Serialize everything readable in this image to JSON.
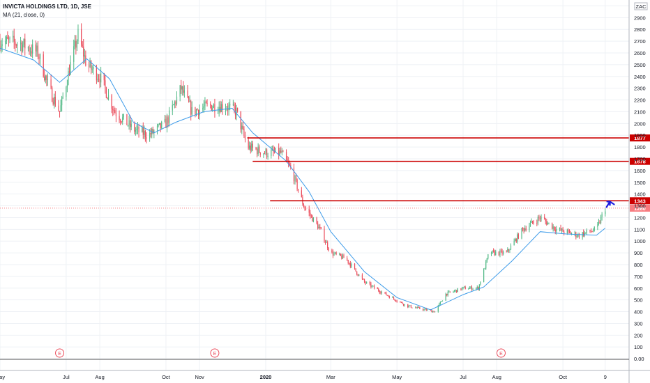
{
  "header": {
    "title": "INVICTA HOLDINGS LTD, 1D, JSE",
    "indicator": "MA (21, close, 0)",
    "currency": "ZAC"
  },
  "colors": {
    "up": "#53b987",
    "down": "#eb4d5c",
    "ma": "#3d9be9",
    "level": "#cc0000",
    "last_price": "#f77c80",
    "grid": "#eef1f5",
    "arrow": "#1a1adf"
  },
  "chart_data": {
    "type": "candlestick",
    "title": "INVICTA HOLDINGS LTD, 1D, JSE",
    "ylim": [
      -100,
      3050
    ],
    "yticks": [
      0,
      100,
      200,
      300,
      400,
      500,
      600,
      700,
      800,
      900,
      1000,
      1100,
      1200,
      1300,
      1400,
      1500,
      1600,
      1700,
      1800,
      1900,
      2000,
      2100,
      2200,
      2300,
      2400,
      2500,
      2600,
      2700,
      2800,
      2900,
      3000
    ],
    "ytick_labels": [
      "0.00",
      "100",
      "200",
      "300",
      "400",
      "500",
      "600",
      "700",
      "800",
      "900",
      "1000",
      "1100",
      "1200",
      "1300",
      "1400",
      "1500",
      "1600",
      "1700",
      "1800",
      "1900",
      "2000",
      "2100",
      "2200",
      "2300",
      "2400",
      "2500",
      "2600",
      "2700",
      "2800",
      "2900",
      "3000"
    ],
    "xlabels": [
      {
        "label": "May",
        "date": "2019-05-01"
      },
      {
        "label": "Jul",
        "date": "2019-07-01"
      },
      {
        "label": "Aug",
        "date": "2019-08-01"
      },
      {
        "label": "Oct",
        "date": "2019-10-01"
      },
      {
        "label": "Nov",
        "date": "2019-11-01"
      },
      {
        "label": "2020",
        "date": "2020-01-01"
      },
      {
        "label": "Mar",
        "date": "2020-03-01"
      },
      {
        "label": "May",
        "date": "2020-05-01"
      },
      {
        "label": "Jul",
        "date": "2020-07-01"
      },
      {
        "label": "Aug",
        "date": "2020-08-01"
      },
      {
        "label": "Oct",
        "date": "2020-10-01"
      },
      {
        "label": "9",
        "date": "2020-11-09"
      }
    ],
    "xrange": [
      "2019-05-01",
      "2020-12-01"
    ],
    "price_path": [
      [
        "2019-05-01",
        2700
      ],
      [
        "2019-05-20",
        2680
      ],
      [
        "2019-06-05",
        2600
      ],
      [
        "2019-06-15",
        2300
      ],
      [
        "2019-06-25",
        2100
      ],
      [
        "2019-07-05",
        2500
      ],
      [
        "2019-07-12",
        2750
      ],
      [
        "2019-07-20",
        2500
      ],
      [
        "2019-08-01",
        2400
      ],
      [
        "2019-08-15",
        2100
      ],
      [
        "2019-09-01",
        1950
      ],
      [
        "2019-09-15",
        1900
      ],
      [
        "2019-10-01",
        2000
      ],
      [
        "2019-10-15",
        2300
      ],
      [
        "2019-10-25",
        2100
      ],
      [
        "2019-11-10",
        2150
      ],
      [
        "2019-11-25",
        2150
      ],
      [
        "2019-12-05",
        2100
      ],
      [
        "2019-12-15",
        1800
      ],
      [
        "2020-01-01",
        1750
      ],
      [
        "2020-01-15",
        1750
      ],
      [
        "2020-01-25",
        1600
      ],
      [
        "2020-02-05",
        1300
      ],
      [
        "2020-02-20",
        1100
      ],
      [
        "2020-03-01",
        900
      ],
      [
        "2020-03-15",
        850
      ],
      [
        "2020-04-01",
        650
      ],
      [
        "2020-04-20",
        550
      ],
      [
        "2020-05-10",
        450
      ],
      [
        "2020-05-25",
        420
      ],
      [
        "2020-06-05",
        400
      ],
      [
        "2020-06-15",
        550
      ],
      [
        "2020-07-01",
        600
      ],
      [
        "2020-07-15",
        600
      ],
      [
        "2020-07-25",
        900
      ],
      [
        "2020-08-10",
        900
      ],
      [
        "2020-08-25",
        1100
      ],
      [
        "2020-09-10",
        1200
      ],
      [
        "2020-09-25",
        1100
      ],
      [
        "2020-10-15",
        1050
      ],
      [
        "2020-11-01",
        1100
      ],
      [
        "2020-11-09",
        1280
      ]
    ],
    "ma_line": [
      [
        "2019-05-01",
        2640
      ],
      [
        "2019-06-01",
        2540
      ],
      [
        "2019-06-25",
        2350
      ],
      [
        "2019-07-20",
        2550
      ],
      [
        "2019-08-10",
        2380
      ],
      [
        "2019-09-01",
        2010
      ],
      [
        "2019-09-20",
        1920
      ],
      [
        "2019-10-10",
        2010
      ],
      [
        "2019-11-05",
        2100
      ],
      [
        "2019-12-01",
        2130
      ],
      [
        "2019-12-20",
        1920
      ],
      [
        "2020-01-20",
        1680
      ],
      [
        "2020-02-10",
        1420
      ],
      [
        "2020-03-01",
        1080
      ],
      [
        "2020-04-01",
        740
      ],
      [
        "2020-05-01",
        520
      ],
      [
        "2020-06-01",
        415
      ],
      [
        "2020-07-01",
        545
      ],
      [
        "2020-07-20",
        610
      ],
      [
        "2020-08-15",
        830
      ],
      [
        "2020-09-10",
        1080
      ],
      [
        "2020-10-05",
        1060
      ],
      [
        "2020-11-01",
        1050
      ],
      [
        "2020-11-09",
        1110
      ]
    ],
    "levels": [
      {
        "value": 1877,
        "label": "1877",
        "from": "2019-12-15"
      },
      {
        "value": 1678,
        "label": "1678",
        "from": "2019-12-20"
      },
      {
        "value": 1343,
        "label": "1343",
        "from": "2020-01-05"
      }
    ],
    "last_price": {
      "value": 1280,
      "label": "1280"
    },
    "earnings_markers": [
      {
        "date": "2019-06-25",
        "label": "E"
      },
      {
        "date": "2019-11-15",
        "label": "E"
      },
      {
        "date": "2020-08-05",
        "label": "E"
      }
    ],
    "arrow": {
      "date": "2020-11-14",
      "value": 1330
    }
  }
}
